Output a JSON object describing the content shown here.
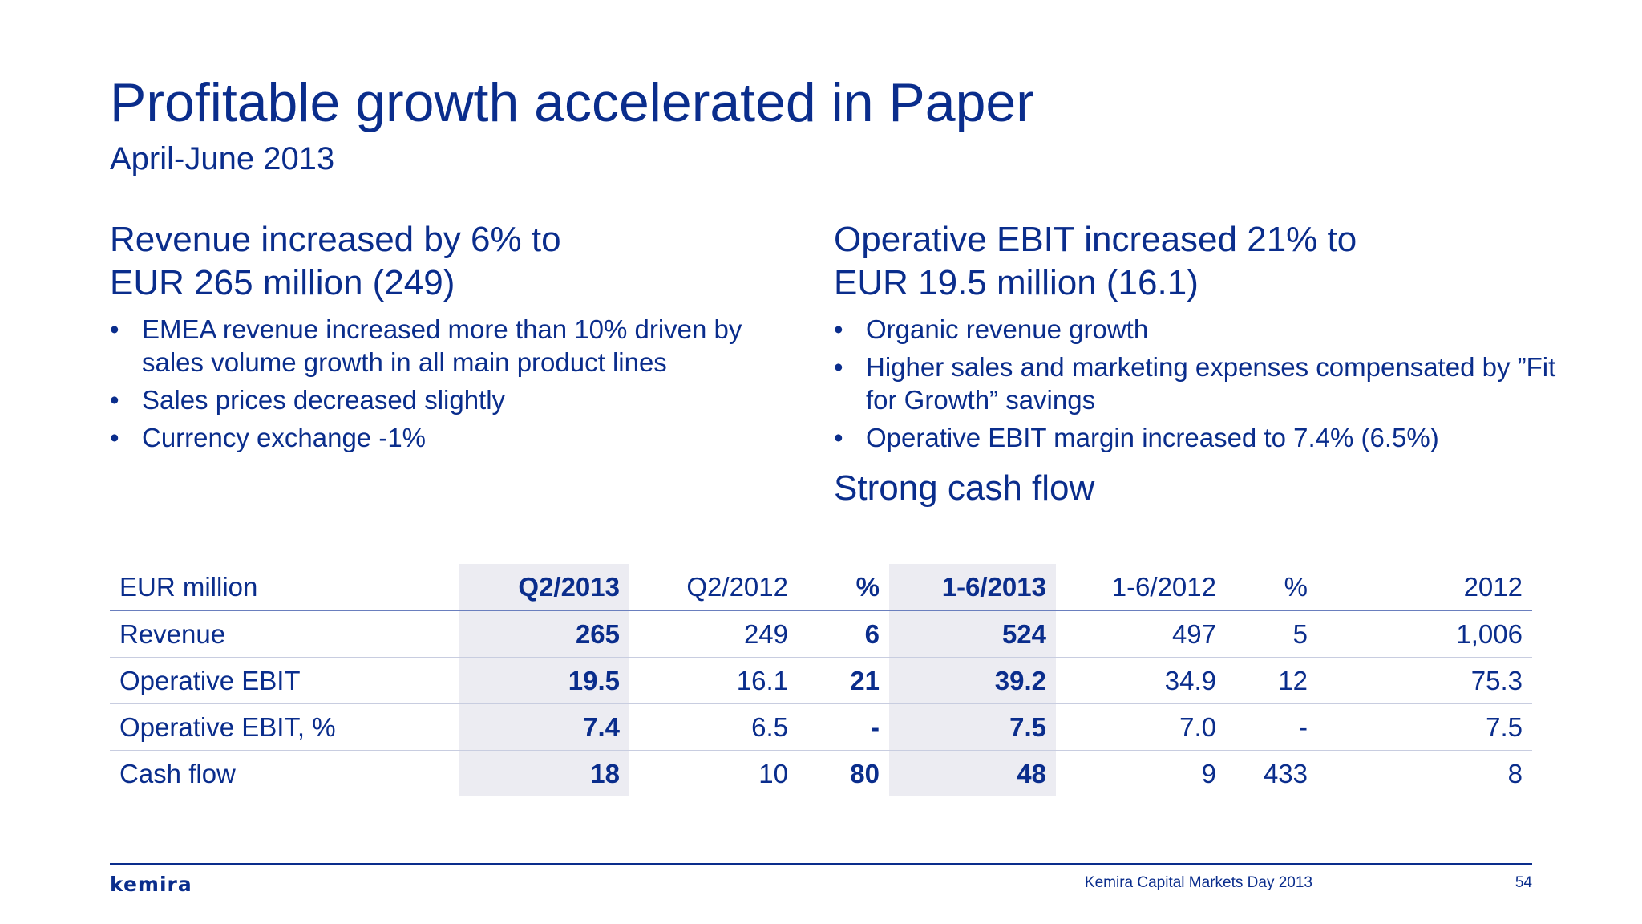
{
  "slide": {
    "title": "Profitable growth accelerated in Paper",
    "subtitle": "April-June 2013"
  },
  "left": {
    "heading_line1": "Revenue increased by 6% to",
    "heading_line2": "EUR 265 million (249)",
    "bullets": [
      "EMEA revenue increased more than 10% driven by sales volume growth in all main product lines",
      "Sales prices decreased slightly",
      "Currency exchange -1%"
    ]
  },
  "right": {
    "heading_line1": "Operative EBIT increased 21% to",
    "heading_line2": "EUR 19.5 million (16.1)",
    "bullets": [
      "Organic revenue growth",
      "Higher sales and marketing expenses compensated by ”Fit for Growth” savings",
      "Operative EBIT margin increased to 7.4% (6.5%)"
    ],
    "heading2": "Strong cash flow"
  },
  "bullet_char": "•",
  "table": {
    "headers": [
      "EUR million",
      "Q2/2013",
      "Q2/2012",
      "%",
      "1-6/2013",
      "1-6/2012",
      "%",
      "2012"
    ],
    "rows": [
      [
        "Revenue",
        "265",
        "249",
        "6",
        "524",
        "497",
        "5",
        "1,006"
      ],
      [
        "Operative EBIT",
        "19.5",
        "16.1",
        "21",
        "39.2",
        "34.9",
        "12",
        "75.3"
      ],
      [
        "Operative EBIT, %",
        "7.4",
        "6.5",
        "-",
        "7.5",
        "7.0",
        "-",
        "7.5"
      ],
      [
        "Cash flow",
        "18",
        "10",
        "80",
        "48",
        "9",
        "433",
        "8"
      ]
    ]
  },
  "footer": {
    "logo": "kemira",
    "event": "Kemira Capital Markets Day 2013",
    "page": "54"
  },
  "colors": {
    "text": "#0a2d8c",
    "shade": "#ececf2"
  }
}
